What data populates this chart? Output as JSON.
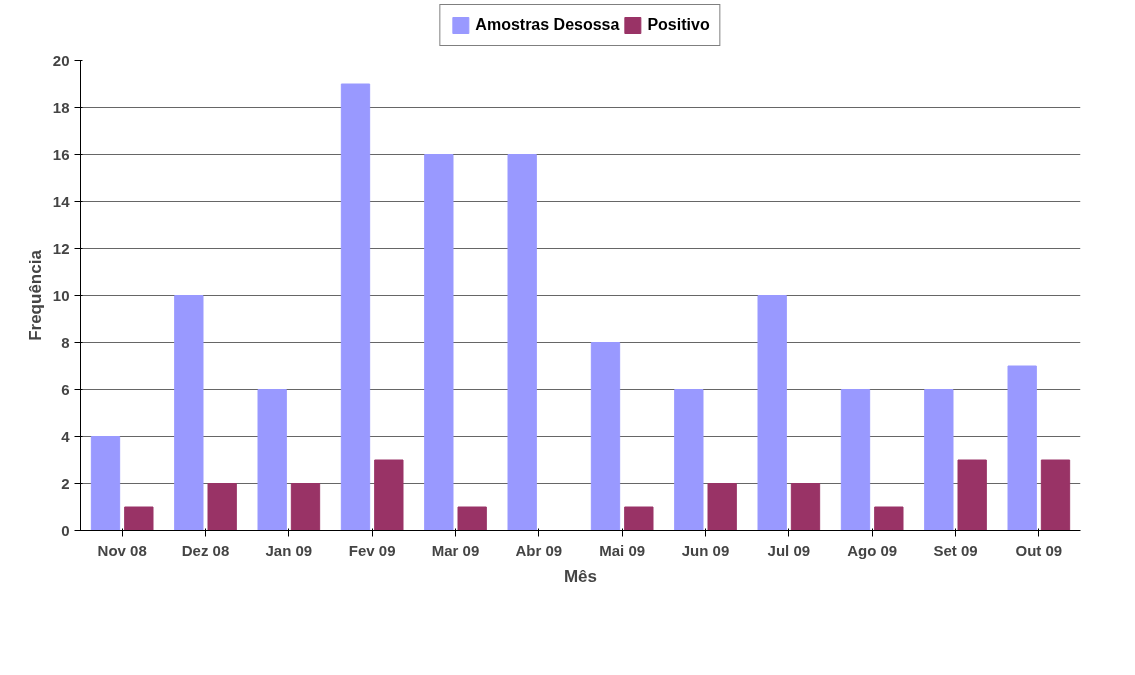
{
  "chart_data": {
    "type": "bar",
    "xlabel": "Mês",
    "ylabel": "Frequência",
    "categories": [
      "Nov 08",
      "Dez 08",
      "Jan 09",
      "Fev 09",
      "Mar 09",
      "Abr 09",
      "Mai 09",
      "Jun 09",
      "Jul 09",
      "Ago 09",
      "Set 09",
      "Out 09"
    ],
    "series": [
      {
        "name": "Amostras Desossa",
        "color": "#9999ff",
        "values": [
          4,
          10,
          6,
          19,
          16,
          16,
          8,
          6,
          10,
          6,
          6,
          7
        ]
      },
      {
        "name": "Positivo",
        "color": "#993366",
        "values": [
          1,
          2,
          2,
          3,
          1,
          0,
          1,
          2,
          2,
          1,
          3,
          3
        ]
      }
    ],
    "ylim": [
      0,
      20
    ],
    "yticks": [
      0,
      2,
      4,
      6,
      8,
      10,
      12,
      14,
      16,
      18,
      20
    ],
    "grid": "y",
    "legend": "top"
  }
}
